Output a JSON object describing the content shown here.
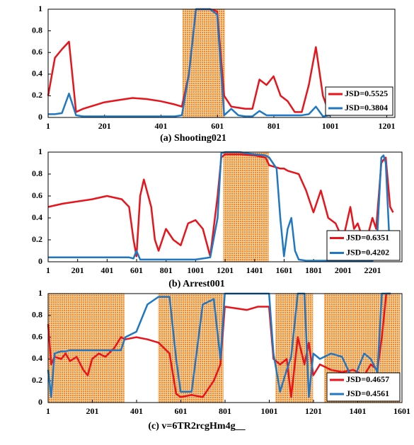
{
  "chart_data": [
    {
      "type": "line",
      "title": "(a) Shooting021",
      "x": [
        1,
        25,
        50,
        75,
        100,
        125,
        150,
        175,
        200,
        250,
        300,
        350,
        400,
        450,
        475,
        500,
        525,
        550,
        575,
        600,
        625,
        650,
        675,
        700,
        725,
        750,
        775,
        800,
        825,
        850,
        875,
        900,
        925,
        950,
        975,
        1000
      ],
      "series": [
        {
          "name": "JSD=0.5525",
          "color": "#e8141b",
          "values": [
            0.2,
            0.55,
            0.63,
            0.7,
            0.05,
            0.08,
            0.1,
            0.12,
            0.14,
            0.16,
            0.18,
            0.17,
            0.15,
            0.12,
            0.1,
            0.4,
            1,
            1,
            1,
            0.98,
            0.2,
            0.1,
            0.09,
            0.08,
            0.08,
            0.35,
            0.3,
            0.38,
            0.2,
            0.15,
            0.05,
            0.05,
            0.3,
            0.65,
            0.2,
            0.02
          ]
        },
        {
          "name": "JSD=0.3804",
          "color": "#1f78c1",
          "values": [
            0.03,
            0.03,
            0.04,
            0.22,
            0.02,
            0.01,
            0.01,
            0.01,
            0.01,
            0.01,
            0.01,
            0.01,
            0.01,
            0.01,
            0.02,
            0.4,
            1,
            1,
            1,
            0.95,
            0.02,
            0.08,
            0.02,
            0.01,
            0.01,
            0.06,
            0.02,
            0.02,
            0.02,
            0.02,
            0.02,
            0.02,
            0.03,
            0.1,
            0.01,
            0.02
          ]
        }
      ],
      "highlights": [
        [
          478,
          626
        ]
      ],
      "highlight_color": "#f39a3c",
      "xlim": [
        1,
        1230
      ],
      "xticks": [
        1,
        201,
        401,
        601,
        801,
        1001,
        1201
      ],
      "ylim": [
        0,
        1
      ],
      "yticks": [
        0,
        0.2,
        0.4,
        0.6,
        0.8,
        1
      ]
    },
    {
      "type": "line",
      "title": "(b) Arrest001",
      "x": [
        1,
        100,
        200,
        300,
        400,
        500,
        550,
        580,
        600,
        625,
        650,
        700,
        725,
        750,
        800,
        850,
        900,
        950,
        1000,
        1050,
        1100,
        1150,
        1175,
        1200,
        1300,
        1400,
        1475,
        1500,
        1550,
        1575,
        1600,
        1625,
        1650,
        1675,
        1700,
        1750,
        1800,
        1850,
        1900,
        1950,
        2000,
        2050,
        2075,
        2100,
        2150,
        2200,
        2225,
        2260,
        2275,
        2290,
        2320,
        2340
      ],
      "series": [
        {
          "name": "JSD=0.6351",
          "color": "#e8141b",
          "values": [
            0.5,
            0.53,
            0.55,
            0.57,
            0.6,
            0.57,
            0.5,
            0.2,
            0.05,
            0.6,
            0.75,
            0.5,
            0.2,
            0.1,
            0.3,
            0.2,
            0.15,
            0.35,
            0.38,
            0.3,
            0.05,
            0.6,
            0.95,
            0.98,
            0.98,
            0.97,
            0.95,
            0.88,
            0.86,
            0.85,
            0.85,
            0.83,
            0.82,
            0.81,
            0.8,
            0.65,
            0.45,
            0.65,
            0.4,
            0.35,
            0.2,
            0.5,
            0.3,
            0.35,
            0.15,
            0.4,
            0.3,
            0.9,
            0.93,
            0.95,
            0.5,
            0.45
          ]
        },
        {
          "name": "JSD=0.4202",
          "color": "#1f78c1",
          "values": [
            0.04,
            0.04,
            0.04,
            0.04,
            0.04,
            0.04,
            0.04,
            0.03,
            0.1,
            0.02,
            0.02,
            0.02,
            0.02,
            0.02,
            0.02,
            0.02,
            0.02,
            0.02,
            0.02,
            0.03,
            0.04,
            0.4,
            0.99,
            1,
            1,
            0.98,
            0.97,
            0.95,
            0.85,
            0.4,
            0.05,
            0.3,
            0.4,
            0.1,
            0.02,
            0.01,
            0.01,
            0.01,
            0.01,
            0.01,
            0.01,
            0.01,
            0.01,
            0.01,
            0.01,
            0.01,
            0.05,
            0.95,
            0.97,
            0.9,
            0.05,
            0.05
          ]
        }
      ],
      "highlights": [
        [
          1190,
          1495
        ]
      ],
      "highlight_color": "#f39a3c",
      "xlim": [
        1,
        2400
      ],
      "xticks": [
        1,
        201,
        401,
        601,
        801,
        1001,
        1201,
        1401,
        1601,
        1801,
        2001,
        2201
      ],
      "ylim": [
        0,
        1
      ],
      "yticks": [
        0,
        0.2,
        0.4,
        0.6,
        0.8,
        1
      ]
    },
    {
      "type": "line",
      "title": "(c) v=6TR2rcgHm4g__",
      "x": [
        1,
        15,
        30,
        60,
        80,
        100,
        130,
        160,
        180,
        200,
        230,
        260,
        300,
        330,
        350,
        400,
        450,
        500,
        550,
        580,
        600,
        650,
        700,
        750,
        780,
        800,
        900,
        950,
        1000,
        1020,
        1050,
        1080,
        1100,
        1130,
        1160,
        1180,
        1200,
        1230,
        1280,
        1330,
        1380,
        1430,
        1460,
        1490,
        1510,
        1530,
        1550
      ],
      "series": [
        {
          "name": "JSD=0.4657",
          "color": "#e8141b",
          "values": [
            0.72,
            0.35,
            0.42,
            0.4,
            0.45,
            0.38,
            0.42,
            0.3,
            0.25,
            0.4,
            0.45,
            0.42,
            0.5,
            0.6,
            0.58,
            0.6,
            0.58,
            0.55,
            0.45,
            0.08,
            0.05,
            0.07,
            0.05,
            0.2,
            0.35,
            0.88,
            0.85,
            0.88,
            0.88,
            0.4,
            0.35,
            0.4,
            0.05,
            0.6,
            0.35,
            0.55,
            0.25,
            0.35,
            0.3,
            0.28,
            0.3,
            0.25,
            0.35,
            0.3,
            0.6,
            1,
            1
          ]
        },
        {
          "name": "JSD=0.4561",
          "color": "#1f78c1",
          "values": [
            0.3,
            0.05,
            0.45,
            0.47,
            0.47,
            0.48,
            0.48,
            0.48,
            0.48,
            0.48,
            0.48,
            0.48,
            0.48,
            0.48,
            0.6,
            0.65,
            0.9,
            0.97,
            0.97,
            0.4,
            0.1,
            0.1,
            0.9,
            0.95,
            0.4,
            1,
            1,
            1,
            1,
            0.45,
            0.1,
            0.3,
            0.42,
            1,
            1,
            0.05,
            0.45,
            0.4,
            0.45,
            0.42,
            0.2,
            0.45,
            0.4,
            0.28,
            1,
            1,
            1
          ]
        }
      ],
      "highlights": [
        [
          1,
          345
        ],
        [
          500,
          793
        ],
        [
          1030,
          1198
        ],
        [
          1250,
          1592
        ]
      ],
      "highlight_color": "#f39a3c",
      "xlim": [
        1,
        1601
      ],
      "xticks": [
        1,
        201,
        401,
        601,
        801,
        1001,
        1201,
        1401,
        1601
      ],
      "ylim": [
        0,
        1
      ],
      "yticks": [
        0,
        0.2,
        0.4,
        0.6,
        0.8,
        1
      ]
    }
  ]
}
